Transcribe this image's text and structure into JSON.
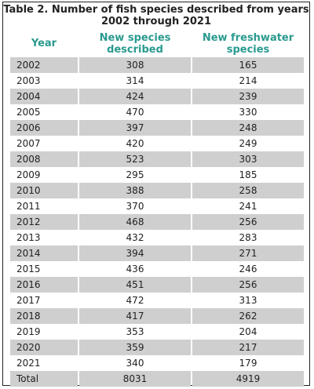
{
  "title_line1": "Table 2. Number of fish species described from years",
  "title_line2": "2002 through 2021",
  "headers": {
    "year": "Year",
    "new_species_line1": "New species",
    "new_species_line2": "described",
    "freshwater_line1": "New freshwater",
    "freshwater_line2": "species"
  },
  "colors": {
    "header_text": "#2a9a8f",
    "shaded_row": "#cfcfcf"
  },
  "rows": [
    {
      "year": "2002",
      "new": "308",
      "fresh": "165"
    },
    {
      "year": "2003",
      "new": "314",
      "fresh": "214"
    },
    {
      "year": "2004",
      "new": "424",
      "fresh": "239"
    },
    {
      "year": "2005",
      "new": "470",
      "fresh": "330"
    },
    {
      "year": "2006",
      "new": "397",
      "fresh": "248"
    },
    {
      "year": "2007",
      "new": "420",
      "fresh": "249"
    },
    {
      "year": "2008",
      "new": "523",
      "fresh": "303"
    },
    {
      "year": "2009",
      "new": "295",
      "fresh": "185"
    },
    {
      "year": "2010",
      "new": "388",
      "fresh": "258"
    },
    {
      "year": "2011",
      "new": "370",
      "fresh": "241"
    },
    {
      "year": "2012",
      "new": "468",
      "fresh": "256"
    },
    {
      "year": "2013",
      "new": "432",
      "fresh": "283"
    },
    {
      "year": "2014",
      "new": "394",
      "fresh": "271"
    },
    {
      "year": "2015",
      "new": "436",
      "fresh": "246"
    },
    {
      "year": "2016",
      "new": "451",
      "fresh": "256"
    },
    {
      "year": "2017",
      "new": "472",
      "fresh": "313"
    },
    {
      "year": "2018",
      "new": "417",
      "fresh": "262"
    },
    {
      "year": "2019",
      "new": "353",
      "fresh": "204"
    },
    {
      "year": "2020",
      "new": "359",
      "fresh": "217"
    },
    {
      "year": "2021",
      "new": "340",
      "fresh": "179"
    },
    {
      "year": "Total",
      "new": "8031",
      "fresh": "4919"
    }
  ]
}
